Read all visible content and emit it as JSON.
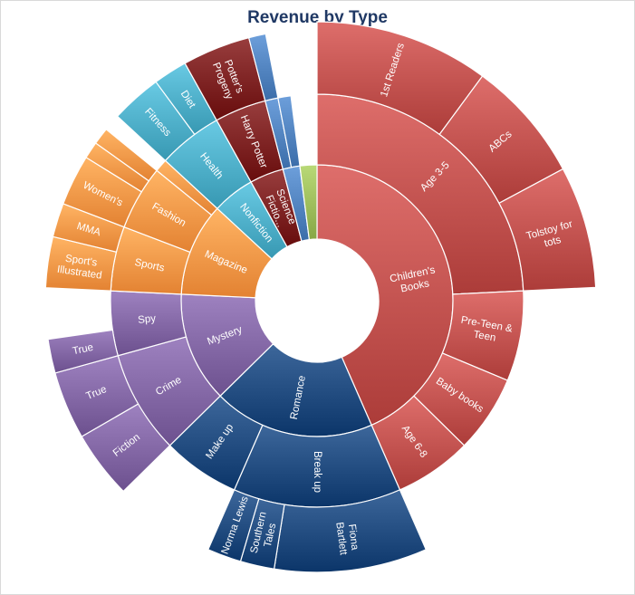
{
  "chart_data": {
    "type": "sunburst",
    "title": "Revenue by Type",
    "colors": {
      "childrens": "#c0504d",
      "romance": "#1f497d",
      "mystery": "#8064a2",
      "magazine": "#f79646",
      "nonfiction": "#4bacc6",
      "harry": "#7b2020",
      "scifi": "#4f81bd",
      "other": "#9bbb59"
    },
    "nodes": [
      {
        "label": "Children's Books",
        "value": 43,
        "color": "childrens",
        "children": [
          {
            "label": "Age 3-5",
            "value": 24,
            "children": [
              {
                "label": "1st Readers",
                "value": 10
              },
              {
                "label": "ABCs",
                "value": 7
              },
              {
                "label": "Tolstoy for tots",
                "value": 7
              }
            ]
          },
          {
            "label": "Pre-Teen & Teen",
            "value": 7
          },
          {
            "label": "Baby books",
            "value": 6
          },
          {
            "label": "Age 6-8",
            "value": 6
          }
        ]
      },
      {
        "label": "Romance",
        "value": 19,
        "color": "romance",
        "children": [
          {
            "label": "Break up",
            "value": 13,
            "children": [
              {
                "label": "Fiona Bartlett",
                "value": 9
              },
              {
                "label": "Southern Tales",
                "value": 2
              },
              {
                "label": "Norma Lewis",
                "value": 2
              }
            ]
          },
          {
            "label": "Make up",
            "value": 6
          }
        ]
      },
      {
        "label": "Mystery",
        "value": 13,
        "color": "mystery",
        "children": [
          {
            "label": "Crime",
            "value": 8,
            "children": [
              {
                "label": "Fiction",
                "value": 4
              },
              {
                "label": "True",
                "value": 4
              }
            ]
          },
          {
            "label": "Spy",
            "value": 5,
            "children": [
              {
                "label": "True",
                "value": 2
              }
            ]
          }
        ]
      },
      {
        "label": "Magazine",
        "value": 11,
        "color": "magazine",
        "children": [
          {
            "label": "Sports",
            "value": 5,
            "children": [
              {
                "label": "Sport's Illustrated",
                "value": 3
              },
              {
                "label": "MMA",
                "value": 2
              }
            ]
          },
          {
            "label": "Fashion",
            "value": 5,
            "children": [
              {
                "label": "Women's",
                "value": 3
              },
              {
                "label": "",
                "value": 1
              },
              {
                "label": "",
                "value": 1
              }
            ]
          },
          {
            "label": "",
            "value": 1
          }
        ]
      },
      {
        "label": "Nonfiction",
        "value": 5,
        "color": "nonfiction",
        "children": [
          {
            "label": "Health",
            "value": 5,
            "children": [
              {
                "label": "Fitness",
                "value": 3
              },
              {
                "label": "Diet",
                "value": 2
              }
            ]
          }
        ]
      },
      {
        "label": "Science Fictio...",
        "value": 4,
        "color": "harry",
        "children": [
          {
            "label": "Harry Potter",
            "value": 4,
            "children": [
              {
                "label": "Potter's Progeny",
                "value": 4
              }
            ]
          }
        ]
      },
      {
        "label": "",
        "value": 2,
        "color": "scifi",
        "children": [
          {
            "label": "",
            "value": 1,
            "children": [
              {
                "label": "",
                "value": 1
              }
            ]
          },
          {
            "label": "",
            "value": 1
          }
        ]
      },
      {
        "label": "",
        "value": 2,
        "color": "other"
      }
    ]
  }
}
